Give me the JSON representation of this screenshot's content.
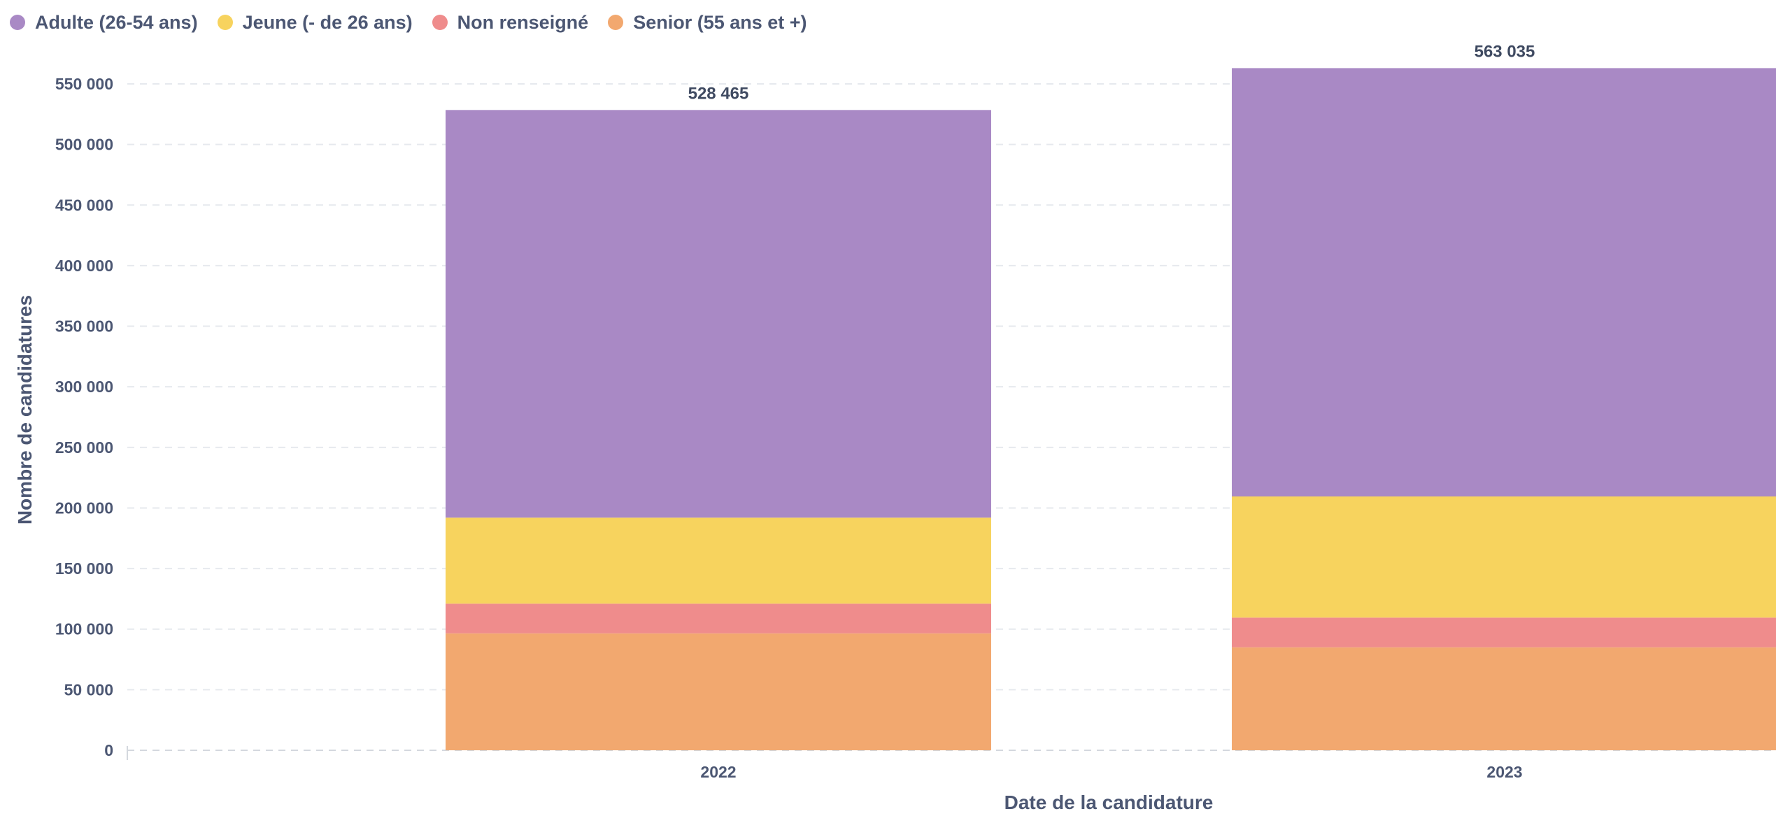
{
  "chart_data": {
    "type": "bar",
    "stacked": true,
    "title": "",
    "xlabel": "Date de la candidature",
    "ylabel": "Nombre de candidatures",
    "categories": [
      "2022",
      "2023"
    ],
    "ylim": [
      0,
      560000
    ],
    "yticks": [
      0,
      50000,
      100000,
      150000,
      200000,
      250000,
      300000,
      350000,
      400000,
      450000,
      500000,
      550000
    ],
    "ytick_labels": [
      "0",
      "50 000",
      "100 000",
      "150 000",
      "200 000",
      "250 000",
      "300 000",
      "350 000",
      "400 000",
      "450 000",
      "500 000",
      "550 000"
    ],
    "grid": true,
    "legend_position": "top-left",
    "series": [
      {
        "name": "Senior (55 ans et +)",
        "color": "#f2a86f",
        "values": [
          96500,
          85000
        ]
      },
      {
        "name": "Non renseigné",
        "color": "#ef8c8c",
        "values": [
          24500,
          24500
        ]
      },
      {
        "name": "Jeune (- de 26 ans)",
        "color": "#f7d35e",
        "values": [
          71000,
          100000
        ]
      },
      {
        "name": "Adulte (26-54 ans)",
        "color": "#a989c5",
        "values": [
          336465,
          353535
        ]
      }
    ],
    "legend_order": [
      "Adulte (26-54 ans)",
      "Jeune (- de 26 ans)",
      "Non renseigné",
      "Senior (55 ans et +)"
    ],
    "totals": [
      528465,
      563035
    ],
    "total_labels": [
      "528 465",
      "563 035"
    ]
  }
}
